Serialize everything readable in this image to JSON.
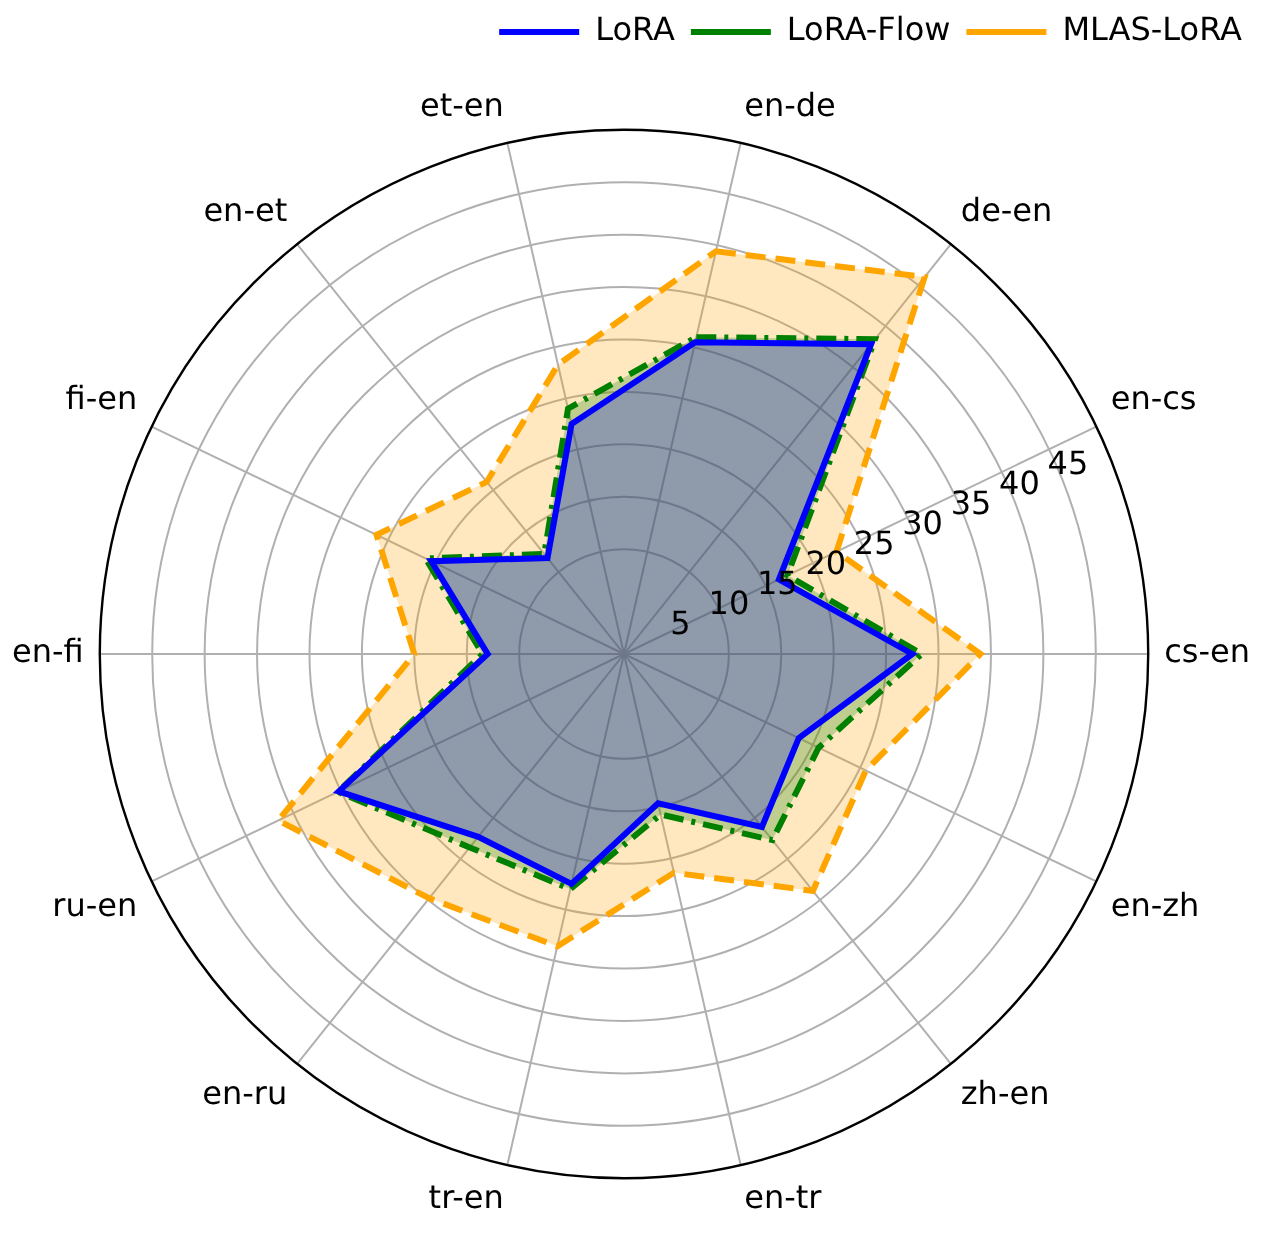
{
  "chart_data": {
    "type": "radar",
    "categories": [
      "en-de",
      "de-en",
      "en-cs",
      "cs-en",
      "en-zh",
      "zh-en",
      "en-tr",
      "tr-en",
      "en-ru",
      "ru-en",
      "en-fi",
      "fi-en",
      "en-et",
      "et-en"
    ],
    "series": [
      {
        "name": "LoRA",
        "color": "#0000ff",
        "line_style": "solid",
        "values": [
          30.5,
          37.8,
          16.4,
          27.5,
          18.5,
          21.1,
          14.6,
          22.5,
          22.3,
          30.2,
          13,
          20.4,
          11.7,
          22.5
        ]
      },
      {
        "name": "LoRA-Flow",
        "color": "#008000",
        "line_style": "dashdot",
        "values": [
          31,
          38.4,
          17.3,
          28.4,
          20.6,
          22.7,
          15.7,
          23,
          23.6,
          30.3,
          13.5,
          21,
          12.2,
          24
        ]
      },
      {
        "name": "MLAS-LoRA",
        "color": "#ffa500",
        "line_style": "dashed",
        "values": [
          39.4,
          46,
          22.5,
          34,
          25.6,
          28.9,
          21.4,
          28.6,
          29.8,
          36.6,
          20,
          26.2,
          21,
          28.3
        ]
      }
    ],
    "ylim": [
      0,
      50
    ],
    "yticks": [
      5,
      10,
      15,
      20,
      25,
      30,
      35,
      40,
      45
    ],
    "grid": true,
    "legend": "top right",
    "marker": "none"
  }
}
